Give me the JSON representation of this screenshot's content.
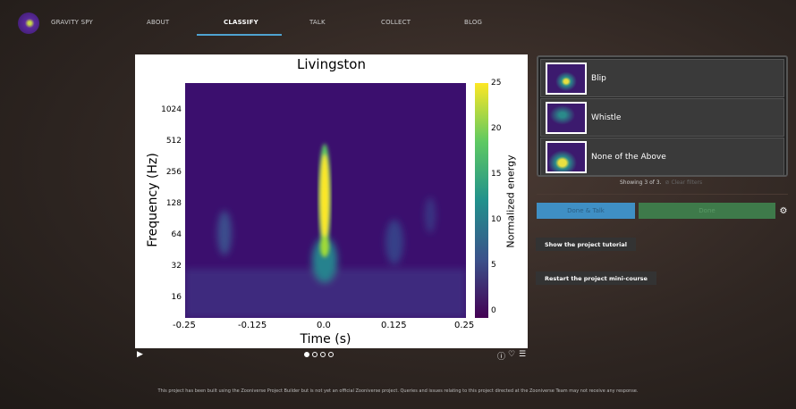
{
  "nav": {
    "brand": "GRAVITY SPY",
    "items": [
      "ABOUT",
      "CLASSIFY",
      "TALK",
      "COLLECT",
      "BLOG"
    ],
    "active": "CLASSIFY"
  },
  "subject": {
    "title": "Livingston",
    "ylabel": "Frequency (Hz)",
    "xlabel": "Time (s)",
    "colorbar_label": "Normalized energy",
    "yticks": [
      "1024",
      "512",
      "256",
      "128",
      "64",
      "32",
      "16"
    ],
    "xticks": [
      "-0.25",
      "-0.125",
      "0.0",
      "0.125",
      "0.25"
    ],
    "cticks": [
      "25",
      "20",
      "15",
      "10",
      "5",
      "0"
    ]
  },
  "frames": {
    "count": 4,
    "current": 1
  },
  "choices": [
    {
      "label": "Blip"
    },
    {
      "label": "Whistle"
    },
    {
      "label": "None of the Above"
    }
  ],
  "showing": "Showing 3 of 3.",
  "clear_filters": "⊘ Clear filters",
  "buttons": {
    "done_talk": "Done & Talk",
    "done": "Done",
    "tutorial": "Show the project tutorial",
    "minicourse": "Restart the project mini-course"
  },
  "footer": "This project has been built using the Zooniverse Project Builder but is not yet an official Zooniverse project. Queries and issues relating to this project directed at the Zooniverse Team may not receive any response.",
  "colors": {
    "accent": "#4fa3d1",
    "done": "#3e7a4a",
    "done_talk": "#3f8fc4"
  }
}
